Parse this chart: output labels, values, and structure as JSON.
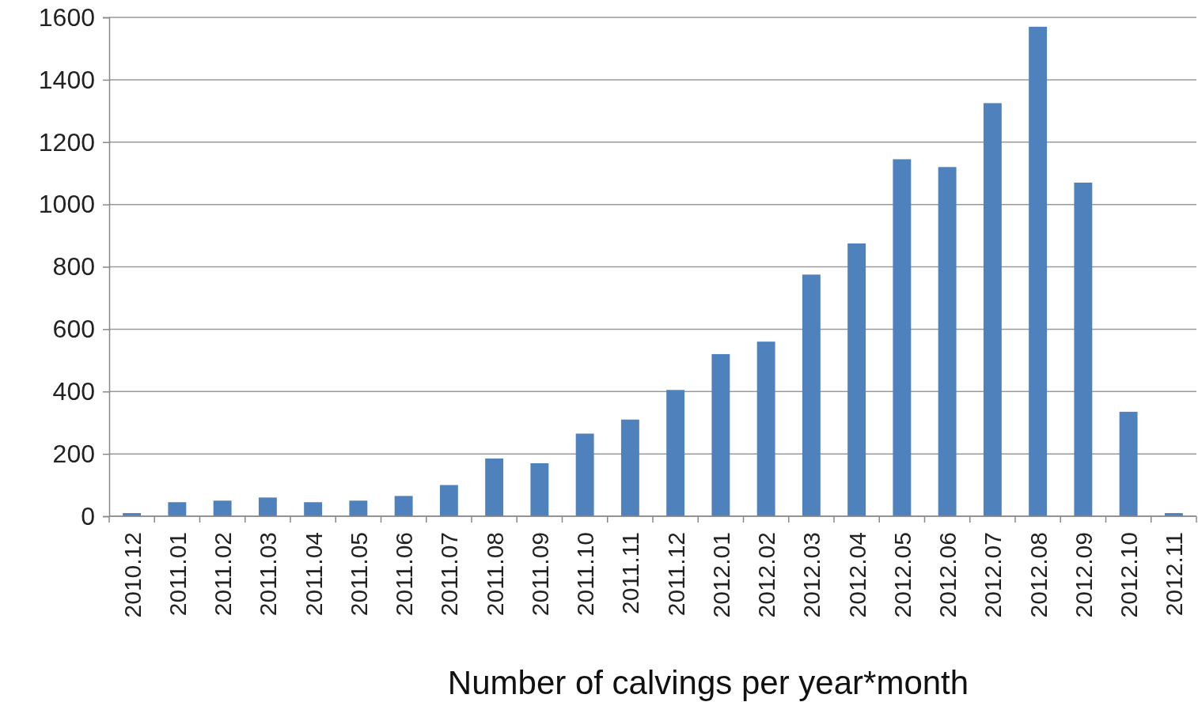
{
  "chart_data": {
    "type": "bar",
    "xlabel": "Number of calvings per year*month",
    "categories": [
      "2010.12",
      "2011.01",
      "2011.02",
      "2011.03",
      "2011.04",
      "2011.05",
      "2011.06",
      "2011.07",
      "2011.08",
      "2011.09",
      "2011.10",
      "2011.11",
      "2011.12",
      "2012.01",
      "2012.02",
      "2012.03",
      "2012.04",
      "2012.05",
      "2012.06",
      "2012.07",
      "2012.08",
      "2012.09",
      "2012.10",
      "2012.11"
    ],
    "values": [
      10,
      45,
      50,
      60,
      45,
      50,
      65,
      100,
      185,
      170,
      265,
      310,
      405,
      520,
      560,
      775,
      875,
      1145,
      1120,
      1325,
      1570,
      1070,
      335,
      10
    ],
    "color": "#4f81bd",
    "ylim": [
      0,
      1600
    ],
    "yticks": [
      0,
      200,
      400,
      600,
      800,
      1000,
      1200,
      1400,
      1600
    ],
    "grid": "y"
  }
}
